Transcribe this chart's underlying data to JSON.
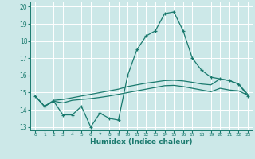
{
  "xlabel": "Humidex (Indice chaleur)",
  "xlim": [
    -0.5,
    23.5
  ],
  "ylim": [
    12.8,
    20.3
  ],
  "yticks": [
    13,
    14,
    15,
    16,
    17,
    18,
    19,
    20
  ],
  "xtick_labels": [
    "0",
    "1",
    "2",
    "3",
    "4",
    "5",
    "6",
    "7",
    "8",
    "9",
    "10",
    "11",
    "12",
    "13",
    "14",
    "15",
    "16",
    "17",
    "18",
    "19",
    "20",
    "21",
    "22",
    "23"
  ],
  "background_color": "#cce8e8",
  "grid_color": "#ffffff",
  "line_color": "#1a7a6e",
  "curve1_x": [
    0,
    1,
    2,
    3,
    4,
    5,
    6,
    7,
    8,
    9,
    10,
    11,
    12,
    13,
    14,
    15,
    16,
    17,
    18,
    19,
    20,
    21,
    22,
    23
  ],
  "curve1_y": [
    14.8,
    14.2,
    14.5,
    13.7,
    13.7,
    14.2,
    13.0,
    13.8,
    13.5,
    13.4,
    16.0,
    17.5,
    18.3,
    18.6,
    19.6,
    19.7,
    18.6,
    17.0,
    16.3,
    15.9,
    15.8,
    15.7,
    15.5,
    14.8
  ],
  "curve2_x": [
    0,
    1,
    2,
    3,
    4,
    5,
    6,
    7,
    8,
    9,
    10,
    11,
    12,
    13,
    14,
    15,
    16,
    17,
    18,
    19,
    20,
    21,
    22,
    23
  ],
  "curve2_y": [
    14.8,
    14.2,
    14.55,
    14.6,
    14.7,
    14.8,
    14.9,
    15.0,
    15.1,
    15.2,
    15.35,
    15.45,
    15.55,
    15.62,
    15.7,
    15.72,
    15.68,
    15.6,
    15.5,
    15.45,
    15.8,
    15.7,
    15.5,
    14.9
  ],
  "curve3_x": [
    0,
    1,
    2,
    3,
    4,
    5,
    6,
    7,
    8,
    9,
    10,
    11,
    12,
    13,
    14,
    15,
    16,
    17,
    18,
    19,
    20,
    21,
    22,
    23
  ],
  "curve3_y": [
    14.8,
    14.2,
    14.5,
    14.4,
    14.55,
    14.6,
    14.65,
    14.72,
    14.8,
    14.9,
    15.0,
    15.1,
    15.2,
    15.3,
    15.4,
    15.42,
    15.35,
    15.25,
    15.15,
    15.05,
    15.25,
    15.15,
    15.1,
    14.85
  ]
}
